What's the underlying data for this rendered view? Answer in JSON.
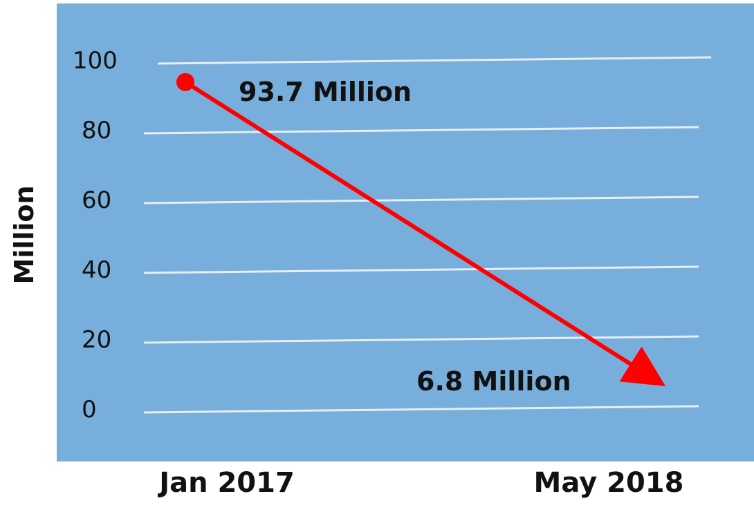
{
  "chart_data": {
    "type": "line",
    "title": "",
    "xlabel": "",
    "ylabel": "Million",
    "categories": [
      "Jan 2017",
      "May 2018"
    ],
    "values": [
      93.7,
      6.8
    ],
    "data_labels": [
      "93.7 Million",
      "6.8 Million"
    ],
    "ylim": [
      0,
      100
    ],
    "yticks": [
      0,
      20,
      40,
      60,
      80,
      100
    ],
    "grid": true,
    "legend": "none",
    "colors": {
      "plot_background": "#78AEDB",
      "gridline": "#E8EEF4",
      "series": "#FF0000",
      "text": "#111111"
    }
  }
}
